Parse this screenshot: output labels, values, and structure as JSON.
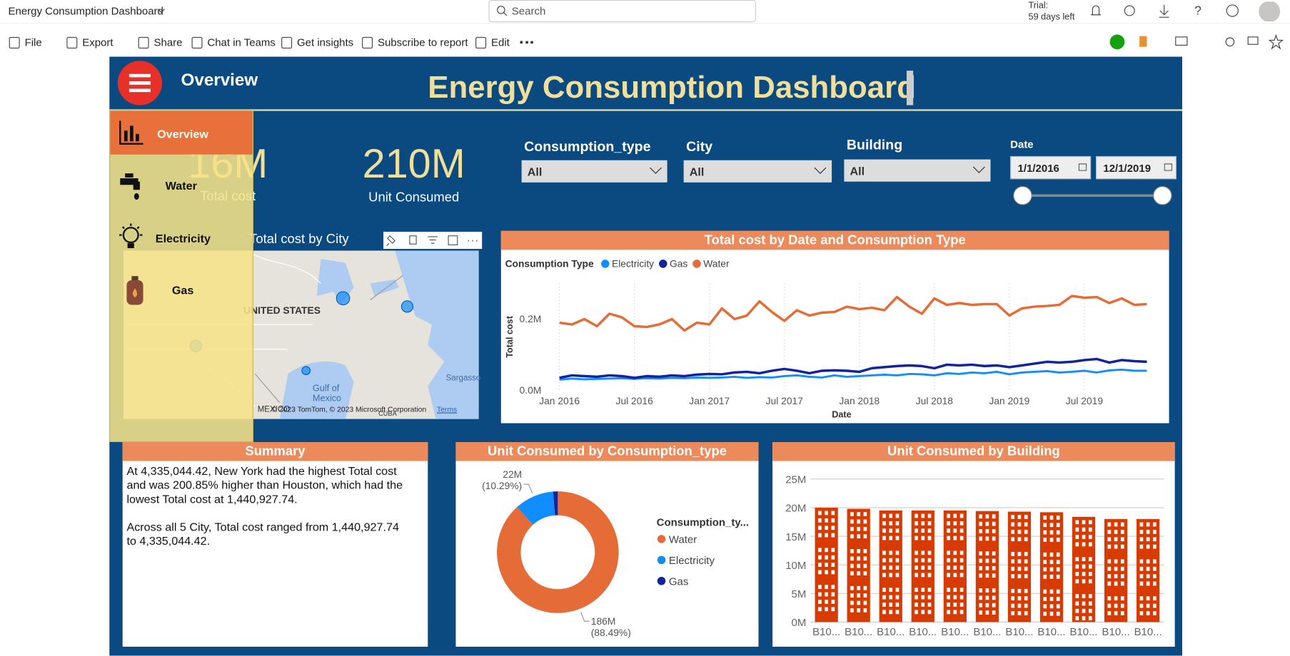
{
  "app_bar": {
    "title": "Energy Consumption Dashboard",
    "search": "Search",
    "trial": "Trial:",
    "trial_days": "59 days left"
  },
  "toolbar": {
    "items": [
      "File",
      "Export",
      "Share",
      "Chat in Teams",
      "Get insights",
      "Subscribe to report",
      "Edit"
    ]
  },
  "report": {
    "page_title": "Overview",
    "title": "Energy Consumption Dashboard",
    "nav": [
      "Overview",
      "Water",
      "Electricity",
      "Gas"
    ],
    "kpis": [
      {
        "value": "16M",
        "label": "Total cost"
      },
      {
        "value": "210M",
        "label": "Unit Consumed"
      }
    ],
    "slicers": [
      {
        "label": "Consumption_type",
        "value": "All"
      },
      {
        "label": "City",
        "value": "All"
      },
      {
        "label": "Building",
        "value": "All"
      }
    ],
    "date_slicer": {
      "label": "Date",
      "start": "1/1/2016",
      "end": "12/1/2019"
    },
    "map": {
      "title": "Total cost by City",
      "labels": [
        "UNITED STATES",
        "Gulf of Mexico",
        "Sargasso",
        "MEXICO",
        "CUBA"
      ],
      "attribution": "© 2023 TomTom, © 2023 Microsoft Corporation",
      "terms": "Terms"
    },
    "summary": {
      "title": "Summary",
      "paragraphs": [
        "At 4,335,044.42, New York had the highest Total cost and was 200.85% higher than Houston, which had the lowest Total cost at 1,440,927.74.",
        "Across all 5 City, Total cost ranged from 1,440,927.74 to 4,335,044.42."
      ]
    }
  },
  "chart_data": [
    {
      "type": "line",
      "title": "Total cost by Date and Consumption Type",
      "legend_title": "Consumption Type",
      "x_label": "Date",
      "y_label": "Total cost",
      "x": [
        "Jan 2016",
        null,
        null,
        null,
        null,
        null,
        "Jul 2016",
        null,
        null,
        null,
        null,
        null,
        "Jan 2017",
        null,
        null,
        null,
        null,
        null,
        "Jul 2017",
        null,
        null,
        null,
        null,
        null,
        "Jan 2018",
        null,
        null,
        null,
        null,
        null,
        "Jul 2018",
        null,
        null,
        null,
        null,
        null,
        "Jan 2019",
        null,
        null,
        null,
        null,
        null,
        "Jul 2019",
        null,
        null,
        null,
        null,
        null
      ],
      "ylim": [
        0,
        300000
      ],
      "yticks": [
        {
          "value": 0,
          "label": "0.0M"
        },
        {
          "value": 200000,
          "label": "0.2M"
        }
      ],
      "grid": true,
      "series": [
        {
          "name": "Electricity",
          "color": "#118dff",
          "values": [
            30000,
            33000,
            31000,
            32000,
            33000,
            34000,
            32000,
            34000,
            33000,
            35000,
            34000,
            36000,
            35000,
            36000,
            38000,
            35000,
            37000,
            36000,
            40000,
            42000,
            38000,
            36000,
            42000,
            38000,
            40000,
            42000,
            44000,
            42000,
            46000,
            45000,
            42000,
            48000,
            46000,
            50000,
            48000,
            52000,
            45000,
            50000,
            52000,
            54000,
            50000,
            52000,
            55000,
            50000,
            56000,
            58000,
            55000,
            55000
          ]
        },
        {
          "name": "Gas",
          "color": "#12239e",
          "values": [
            35000,
            42000,
            40000,
            38000,
            42000,
            40000,
            35000,
            40000,
            38000,
            42000,
            40000,
            44000,
            46000,
            45000,
            50000,
            52000,
            48000,
            55000,
            60000,
            55000,
            48000,
            55000,
            56000,
            55000,
            52000,
            62000,
            65000,
            68000,
            70000,
            68000,
            62000,
            72000,
            70000,
            72000,
            68000,
            70000,
            65000,
            70000,
            75000,
            80000,
            78000,
            80000,
            85000,
            88000,
            78000,
            85000,
            82000,
            80000
          ]
        },
        {
          "name": "Water",
          "color": "#e66c37",
          "values": [
            190000,
            185000,
            200000,
            180000,
            215000,
            205000,
            180000,
            178000,
            185000,
            200000,
            168000,
            190000,
            185000,
            230000,
            200000,
            210000,
            250000,
            220000,
            195000,
            225000,
            210000,
            218000,
            220000,
            235000,
            228000,
            232000,
            225000,
            262000,
            235000,
            215000,
            258000,
            240000,
            245000,
            240000,
            242000,
            242000,
            210000,
            230000,
            235000,
            237000,
            240000,
            265000,
            260000,
            262000,
            245000,
            258000,
            240000,
            242000
          ]
        }
      ]
    },
    {
      "type": "donut",
      "title": "Unit Consumed by Consumption_type",
      "legend_title": "Consumption_ty...",
      "categories": [
        "Water",
        "Electricity",
        "Gas"
      ],
      "colors": [
        "#e66c37",
        "#118dff",
        "#12239e"
      ],
      "values": [
        186000000,
        22000000,
        2600000
      ],
      "value_labels": [
        "186M",
        "22M",
        null
      ],
      "percent_labels": [
        "(88.49%)",
        "(10.29%)",
        null
      ]
    },
    {
      "type": "bar",
      "title": "Unit Consumed by Building",
      "color": "#d83b01",
      "categories": [
        "B10...",
        "B10...",
        "B10...",
        "B10...",
        "B10...",
        "B10...",
        "B10...",
        "B10...",
        "B10...",
        "B10...",
        "B10..."
      ],
      "values": [
        20000000,
        19800000,
        19500000,
        19500000,
        19500000,
        19400000,
        19300000,
        19200000,
        18400000,
        18000000,
        18000000
      ],
      "ylim": [
        0,
        25000000
      ],
      "yticks": [
        {
          "value": 0,
          "label": "0M"
        },
        {
          "value": 5000000,
          "label": "5M"
        },
        {
          "value": 10000000,
          "label": "10M"
        },
        {
          "value": 15000000,
          "label": "15M"
        },
        {
          "value": 20000000,
          "label": "20M"
        },
        {
          "value": 25000000,
          "label": "25M"
        }
      ],
      "grid": true
    }
  ]
}
